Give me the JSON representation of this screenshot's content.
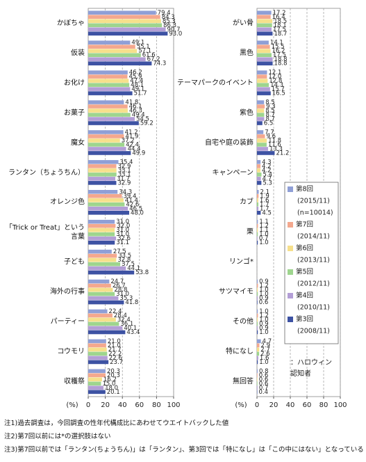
{
  "chart_data": [
    {
      "type": "bar",
      "orientation": "horizontal",
      "unit_label": "(%)",
      "categories": [
        "かぼちゃ",
        "仮装",
        "お化け",
        "お菓子",
        "魔女",
        "ランタン（ちょうちん）",
        "オレンジ色",
        "「Trick or Treat」という言葉",
        "子ども",
        "海外の行事",
        "パーティー",
        "コウモリ",
        "収穫祭"
      ],
      "series": [
        {
          "color": "#8f9fd6",
          "values": [
            79.4,
            49.1,
            46.2,
            41.8,
            41.2,
            35.4,
            34.3,
            31.0,
            27.5,
            24.7,
            22.4,
            21.0,
            20.3
          ],
          "value_labels": [
            "79.4",
            "49.1",
            "46.2",
            "41.8",
            "41.2",
            "35.4",
            "34.3",
            "31.0",
            "27.5",
            "24.7",
            "22.4",
            "21.0",
            "20.3"
          ]
        },
        {
          "color": "#f4a88e",
          "values": [
            84.3,
            55.1,
            45.9,
            46.1,
            41.9,
            32.9,
            39.4,
            32.0,
            33.5,
            26.7,
            28.4,
            21.0,
            20.3
          ],
          "value_labels": [
            "84.3",
            "55.1",
            "45.9",
            "46.1",
            "41.9",
            "32.9",
            "39.4",
            "32.0",
            "33.5",
            "26.7",
            "28.4",
            "21.0",
            "20.3"
          ]
        },
        {
          "color": "#f6e08c",
          "values": [
            85.3,
            57.1,
            47.4,
            46.3,
            37.2,
            33.1,
            41.4,
            31.0,
            32.8,
            28.8,
            32.4,
            21.7,
            16.2
          ],
          "value_labels": [
            "85.3",
            "57.1",
            "47.4",
            "46.3",
            "37.2",
            "33.1",
            "41.4",
            "31.0",
            "32.8",
            "28.8",
            "32.4",
            "21.7",
            "16.2"
          ]
        },
        {
          "color": "#9ed58e",
          "values": [
            86.3,
            61.6,
            48.1,
            49.4,
            42.4,
            33.1,
            42.6,
            31.0,
            37.5,
            31.0,
            36.1,
            22.2,
            15.0
          ],
          "value_labels": [
            "86.3",
            "61.6",
            "48.1",
            "49.4",
            "42.4",
            "33.1",
            "42.6",
            "31.0",
            "37.5",
            "31.0",
            "36.1",
            "22.2",
            "15.0"
          ]
        },
        {
          "color": "#b39ed6",
          "values": [
            90.7,
            67.2,
            49.1,
            54.5,
            44.4,
            31.7,
            46.5,
            32.6,
            44.1,
            35.3,
            40.1,
            22.6,
            18.0
          ],
          "value_labels": [
            "90.7",
            "67.2",
            "49.1",
            "54.5",
            "44.4",
            "31.7",
            "46.5",
            "32.6",
            "44.1",
            "35.3",
            "40.1",
            "22.6",
            "18.0"
          ]
        },
        {
          "color": "#3d52a3",
          "values": [
            93.0,
            74.3,
            51.7,
            59.2,
            49.9,
            32.9,
            48.0,
            31.1,
            53.8,
            41.8,
            43.4,
            23.7,
            20.1
          ],
          "value_labels": [
            "93.0",
            "74.3",
            "51.7",
            "59.2",
            "49.9",
            "32.9",
            "48.0",
            "31.1",
            "53.8",
            "41.8",
            "43.4",
            "23.7",
            "20.1"
          ]
        }
      ],
      "xlim": [
        0,
        100
      ],
      "xticks": [
        0,
        20,
        40,
        60,
        80,
        100
      ],
      "grid": true
    },
    {
      "type": "bar",
      "orientation": "horizontal",
      "unit_label": "(%)",
      "categories": [
        "がい骨",
        "黒色",
        "テーマパークのイベント",
        "紫色",
        "自宅や庭の装飾",
        "キャンペーン",
        "カブ",
        "栗",
        "リンゴ*",
        "サツマイモ",
        "その他",
        "特になし",
        "無回答"
      ],
      "series": [
        {
          "name": "第8回",
          "period": "(2015/11)",
          "sample": "(n=10014)",
          "color": "#8f9fd6",
          "values": [
            17.2,
            14.1,
            12.1,
            8.5,
            7.7,
            4.3,
            2.1,
            1.1,
            null,
            0.9,
            1.0,
            4.7,
            0.8
          ],
          "value_labels": [
            "17.2",
            "14.1",
            "12.1",
            "8.5",
            "7.7",
            "4.3",
            "2.1",
            "1.1",
            null,
            "0.9",
            "1.0",
            "4.7",
            "0.8"
          ]
        },
        {
          "name": "第7回",
          "period": "(2014/11)",
          "color": "#f4a88e",
          "values": [
            16.4,
            15.5,
            12.0,
            9.3,
            9.6,
            4.2,
            1.9,
            1.2,
            null,
            1.2,
            1.2,
            2.9,
            0.6
          ],
          "value_labels": [
            "16.4",
            "15.5",
            "12.0",
            "9.3",
            "9.6",
            "4.2",
            "1.9",
            "1.2",
            null,
            "1.2",
            "1.2",
            "2.9",
            "0.6"
          ]
        },
        {
          "name": "第6回",
          "period": "(2013/11)",
          "color": "#f6e08c",
          "values": [
            18.5,
            16.2,
            12.8,
            8.5,
            11.8,
            4.2,
            1.6,
            1.1,
            null,
            1.0,
            1.0,
            2.7,
            0.6
          ],
          "value_labels": [
            "18.5",
            "16.2",
            "12.8",
            "8.5",
            "11.8",
            "4.2",
            "1.6",
            "1.1",
            null,
            "1.0",
            "1.0",
            "2.7",
            "0.6"
          ]
        },
        {
          "name": "第5回",
          "period": "(2012/11)",
          "color": "#9ed58e",
          "values": [
            18.1,
            17.5,
            14.3,
            8.7,
            11.6,
            5.4,
            1.7,
            1.0,
            null,
            1.0,
            0.9,
            2.6,
            0.6
          ],
          "value_labels": [
            "18.1",
            "17.5",
            "14.3",
            "8.7",
            "11.6",
            "5.4",
            "1.7",
            "1.0",
            null,
            "1.0",
            "0.9",
            "2.6",
            "0.6"
          ]
        },
        {
          "name": "第4回",
          "period": "(2010/11)",
          "color": "#b39ed6",
          "values": [
            17.5,
            18.8,
            15.7,
            8.7,
            13.3,
            4.7,
            1.7,
            0.7,
            null,
            0.9,
            0.9,
            1.6,
            0.7
          ],
          "value_labels": [
            "17.5",
            "18.8",
            "15.7",
            "8.7",
            "13.3",
            "4.7",
            "1.7",
            "0.7",
            null,
            "0.9",
            "0.9",
            "1.6",
            "0.7"
          ]
        },
        {
          "name": "第3回",
          "period": "(2008/11)",
          "color": "#3d52a3",
          "values": [
            18.7,
            18.8,
            16.5,
            6.5,
            21.2,
            5.3,
            4.5,
            1.0,
            null,
            0.6,
            1.0,
            1.0,
            0.4
          ],
          "value_labels": [
            "18.7",
            "18.8",
            "16.5",
            "6.5",
            "21.2",
            "5.3",
            "4.5",
            "1.0",
            null,
            "0.6",
            "1.0",
            "1.0",
            "0.4"
          ]
        }
      ],
      "xlim": [
        0,
        100
      ],
      "xticks": [
        0,
        20,
        40,
        60,
        80,
        100
      ],
      "grid": true,
      "legend_note": [
        "：ハロウィン",
        "認知者"
      ]
    }
  ],
  "footnotes": [
    "注1)過去調査は，今回調査の性年代構成比にあわせてウエイトバックした値",
    "注2)第7回以前には*の選択肢はない",
    "注3)第7回以前では「ランタン(ちょうちん)」は「ランタン」、第3回では「特になし」は「この中にはない」となっている"
  ]
}
